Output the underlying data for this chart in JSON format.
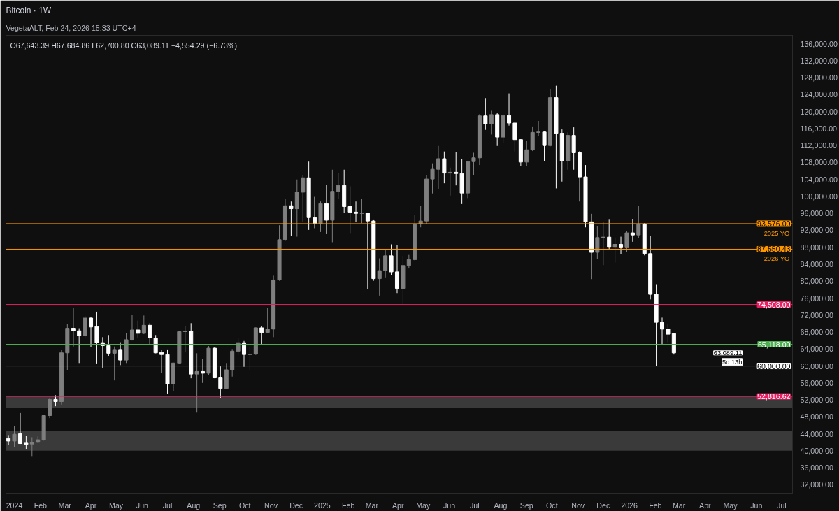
{
  "chart_data": {
    "type": "candlestick",
    "title": "Bitcoin · 1W",
    "subtitle": "VegetaALT, Feb 24, 2026 15:33 UTC+4",
    "annotations": [
      "O67,643.39 H67,684.86 L62,700.80 C63,089.11 −4,554.29 (−6.73%)",
      "63,089.11",
      "5d 13h",
      {
        "text": "2025 YO",
        "y": 93576
      },
      {
        "text": "2026 YO",
        "y": 87550.43
      }
    ],
    "x": [
      "2023-12-25",
      "2024-01-01",
      "2024-01-08",
      "2024-01-15",
      "2024-01-22",
      "2024-01-29",
      "2024-02-05",
      "2024-02-12",
      "2024-02-19",
      "2024-02-26",
      "2024-03-04",
      "2024-03-11",
      "2024-03-18",
      "2024-03-25",
      "2024-04-01",
      "2024-04-08",
      "2024-04-15",
      "2024-04-22",
      "2024-04-29",
      "2024-05-06",
      "2024-05-13",
      "2024-05-20",
      "2024-05-27",
      "2024-06-03",
      "2024-06-10",
      "2024-06-17",
      "2024-06-24",
      "2024-07-01",
      "2024-07-08",
      "2024-07-15",
      "2024-07-22",
      "2024-07-29",
      "2024-08-05",
      "2024-08-12",
      "2024-08-19",
      "2024-08-26",
      "2024-09-02",
      "2024-09-09",
      "2024-09-16",
      "2024-09-23",
      "2024-09-30",
      "2024-10-07",
      "2024-10-14",
      "2024-10-21",
      "2024-10-28",
      "2024-11-04",
      "2024-11-11",
      "2024-11-18",
      "2024-11-25",
      "2024-12-02",
      "2024-12-09",
      "2024-12-16",
      "2024-12-23",
      "2024-12-30",
      "2025-01-06",
      "2025-01-13",
      "2025-01-20",
      "2025-01-27",
      "2025-02-03",
      "2025-02-10",
      "2025-02-17",
      "2025-02-24",
      "2025-03-03",
      "2025-03-10",
      "2025-03-17",
      "2025-03-24",
      "2025-03-31",
      "2025-04-07",
      "2025-04-14",
      "2025-04-21",
      "2025-04-28",
      "2025-05-05",
      "2025-05-12",
      "2025-05-19",
      "2025-05-26",
      "2025-06-02",
      "2025-06-09",
      "2025-06-16",
      "2025-06-23",
      "2025-06-30",
      "2025-07-07",
      "2025-07-14",
      "2025-07-21",
      "2025-07-28",
      "2025-08-04",
      "2025-08-11",
      "2025-08-18",
      "2025-08-25",
      "2025-09-01",
      "2025-09-08",
      "2025-09-15",
      "2025-09-22",
      "2025-09-29",
      "2025-10-06",
      "2025-10-13",
      "2025-10-20",
      "2025-10-27",
      "2025-11-03",
      "2025-11-10",
      "2025-11-17",
      "2025-11-24",
      "2025-12-01",
      "2025-12-08",
      "2025-12-15",
      "2025-12-22",
      "2025-12-29",
      "2026-01-05",
      "2026-01-12",
      "2026-01-19",
      "2026-01-26",
      "2026-02-02",
      "2026-02-09",
      "2026-02-16",
      "2026-02-23"
    ],
    "ohlc": [
      [
        42900,
        43700,
        41300,
        42300
      ],
      [
        42300,
        45900,
        40800,
        43900
      ],
      [
        44000,
        48900,
        41600,
        41700
      ],
      [
        41800,
        43600,
        40300,
        41500
      ],
      [
        41600,
        43200,
        38600,
        42000
      ],
      [
        42000,
        43400,
        41800,
        42600
      ],
      [
        42600,
        48500,
        42400,
        48300
      ],
      [
        48300,
        52500,
        47700,
        52100
      ],
      [
        52100,
        53100,
        50500,
        51600
      ],
      [
        51600,
        63800,
        50900,
        63100
      ],
      [
        63100,
        69900,
        59000,
        68900
      ],
      [
        68900,
        73700,
        64600,
        68300
      ],
      [
        68300,
        68900,
        60700,
        67100
      ],
      [
        67100,
        71800,
        66500,
        71300
      ],
      [
        71300,
        71500,
        64400,
        69200
      ],
      [
        69300,
        72800,
        60600,
        65500
      ],
      [
        65500,
        66800,
        59600,
        64800
      ],
      [
        64800,
        67300,
        62400,
        63000
      ],
      [
        63000,
        64600,
        56600,
        63900
      ],
      [
        63900,
        65600,
        60200,
        61400
      ],
      [
        61400,
        67800,
        60700,
        66200
      ],
      [
        66200,
        72100,
        66000,
        68500
      ],
      [
        68500,
        70700,
        66600,
        67700
      ],
      [
        67700,
        71900,
        67500,
        69600
      ],
      [
        69600,
        70100,
        65000,
        66600
      ],
      [
        66600,
        67300,
        63000,
        63100
      ],
      [
        63200,
        63800,
        58400,
        62700
      ],
      [
        62700,
        63900,
        53500,
        55800
      ],
      [
        55800,
        60800,
        54100,
        60700
      ],
      [
        60700,
        68300,
        60600,
        68100
      ],
      [
        68100,
        69400,
        63200,
        68200
      ],
      [
        68200,
        70100,
        57100,
        58100
      ],
      [
        58100,
        63000,
        49000,
        58700
      ],
      [
        58700,
        61700,
        56000,
        58300
      ],
      [
        58300,
        64700,
        57900,
        64200
      ],
      [
        64200,
        64400,
        57100,
        57200
      ],
      [
        57200,
        59900,
        52500,
        54700
      ],
      [
        54700,
        60700,
        54600,
        59100
      ],
      [
        59100,
        64000,
        57500,
        63500
      ],
      [
        63500,
        66500,
        62600,
        65500
      ],
      [
        65500,
        65900,
        59800,
        62700
      ],
      [
        62700,
        64400,
        58900,
        62800
      ],
      [
        62800,
        69100,
        62600,
        69000
      ],
      [
        69000,
        69400,
        65100,
        67900
      ],
      [
        67900,
        73700,
        67800,
        68700
      ],
      [
        68700,
        81300,
        66800,
        80300
      ],
      [
        80300,
        93200,
        80100,
        89800
      ],
      [
        89800,
        99400,
        89500,
        97800
      ],
      [
        97800,
        98800,
        90600,
        97100
      ],
      [
        97100,
        104000,
        90500,
        101000
      ],
      [
        101000,
        105000,
        94000,
        104400
      ],
      [
        104400,
        108200,
        92100,
        95000
      ],
      [
        95000,
        99900,
        92500,
        93600
      ],
      [
        93600,
        98800,
        91600,
        98300
      ],
      [
        98300,
        102700,
        91100,
        94400
      ],
      [
        94400,
        106300,
        89200,
        101200
      ],
      [
        101200,
        105500,
        99400,
        102600
      ],
      [
        102600,
        106300,
        96100,
        97600
      ],
      [
        97600,
        102400,
        91200,
        96300
      ],
      [
        96300,
        98800,
        94000,
        96000
      ],
      [
        96000,
        99400,
        93700,
        96100
      ],
      [
        96100,
        96200,
        78200,
        94200
      ],
      [
        94200,
        94400,
        80100,
        80600
      ],
      [
        80600,
        85400,
        76600,
        82500
      ],
      [
        82500,
        87300,
        80900,
        86000
      ],
      [
        86000,
        88700,
        81500,
        82200
      ],
      [
        82200,
        88500,
        77200,
        78300
      ],
      [
        78300,
        86000,
        74500,
        83700
      ],
      [
        83700,
        86200,
        83000,
        85100
      ],
      [
        85100,
        95600,
        84900,
        93500
      ],
      [
        93500,
        97700,
        92700,
        94200
      ],
      [
        94200,
        105000,
        93500,
        104100
      ],
      [
        104100,
        107800,
        100700,
        106400
      ],
      [
        106400,
        111900,
        101800,
        108900
      ],
      [
        108900,
        110600,
        103100,
        105500
      ],
      [
        105500,
        106800,
        100200,
        105700
      ],
      [
        105700,
        110500,
        102600,
        105400
      ],
      [
        105400,
        108800,
        98200,
        100800
      ],
      [
        100800,
        108400,
        99600,
        108200
      ],
      [
        108200,
        110300,
        105000,
        109100
      ],
      [
        109100,
        119400,
        107400,
        119000
      ],
      [
        119000,
        123200,
        115700,
        117100
      ],
      [
        117100,
        120200,
        114600,
        119300
      ],
      [
        119300,
        119700,
        111900,
        114000
      ],
      [
        114000,
        119400,
        112500,
        119100
      ],
      [
        119100,
        124300,
        116700,
        117300
      ],
      [
        117300,
        117500,
        110600,
        113400
      ],
      [
        113400,
        113500,
        107200,
        108100
      ],
      [
        108100,
        113100,
        107200,
        111000
      ],
      [
        111000,
        116500,
        110700,
        115100
      ],
      [
        115100,
        117800,
        114200,
        115200
      ],
      [
        115200,
        115300,
        108400,
        112000
      ],
      [
        112000,
        125400,
        111800,
        123300
      ],
      [
        123300,
        126100,
        101900,
        114900
      ],
      [
        114900,
        115800,
        103500,
        108400
      ],
      [
        108400,
        115100,
        106300,
        114400
      ],
      [
        114400,
        116300,
        106300,
        110300
      ],
      [
        110300,
        110700,
        98800,
        104600
      ],
      [
        104600,
        107400,
        92700,
        94000
      ],
      [
        94000,
        95900,
        80500,
        86800
      ],
      [
        86800,
        92900,
        85200,
        90300
      ],
      [
        90300,
        94000,
        83800,
        90400
      ],
      [
        90400,
        94500,
        87600,
        88000
      ],
      [
        88000,
        90300,
        84400,
        88700
      ],
      [
        88700,
        90500,
        86400,
        87900
      ],
      [
        87900,
        91900,
        86900,
        91400
      ],
      [
        91400,
        94700,
        89300,
        90900
      ],
      [
        90900,
        97700,
        90100,
        93500
      ],
      [
        93500,
        93700,
        86100,
        86500
      ],
      [
        86500,
        90600,
        75700,
        76900
      ],
      [
        76900,
        79300,
        60000,
        70300
      ],
      [
        70300,
        71400,
        65100,
        68700
      ],
      [
        68700,
        70000,
        65600,
        67500
      ],
      [
        67643.39,
        67684.86,
        62700.8,
        63089.11
      ]
    ],
    "colors": [
      "#ffffff",
      "#7f7f7f",
      "#ffffff",
      "#ffffff",
      "#7f7f7f",
      "#7f7f7f",
      "#7f7f7f",
      "#7f7f7f",
      "#ffffff",
      "#7f7f7f",
      "#7f7f7f",
      "#ffffff",
      "#ffffff",
      "#7f7f7f",
      "#ffffff",
      "#ffffff",
      "#ffffff",
      "#ffffff",
      "#7f7f7f",
      "#ffffff",
      "#7f7f7f",
      "#7f7f7f",
      "#ffffff",
      "#7f7f7f",
      "#ffffff",
      "#ffffff",
      "#ffffff",
      "#ffffff",
      "#7f7f7f",
      "#7f7f7f",
      "#7f7f7f",
      "#ffffff",
      "#7f7f7f",
      "#ffffff",
      "#7f7f7f",
      "#ffffff",
      "#ffffff",
      "#7f7f7f",
      "#7f7f7f",
      "#7f7f7f",
      "#ffffff",
      "#7f7f7f",
      "#7f7f7f",
      "#ffffff",
      "#7f7f7f",
      "#7f7f7f",
      "#7f7f7f",
      "#7f7f7f",
      "#ffffff",
      "#7f7f7f",
      "#7f7f7f",
      "#ffffff",
      "#ffffff",
      "#7f7f7f",
      "#ffffff",
      "#7f7f7f",
      "#7f7f7f",
      "#ffffff",
      "#ffffff",
      "#ffffff",
      "#7f7f7f",
      "#ffffff",
      "#ffffff",
      "#7f7f7f",
      "#7f7f7f",
      "#ffffff",
      "#ffffff",
      "#7f7f7f",
      "#7f7f7f",
      "#7f7f7f",
      "#7f7f7f",
      "#7f7f7f",
      "#7f7f7f",
      "#7f7f7f",
      "#ffffff",
      "#7f7f7f",
      "#ffffff",
      "#ffffff",
      "#7f7f7f",
      "#7f7f7f",
      "#7f7f7f",
      "#ffffff",
      "#7f7f7f",
      "#ffffff",
      "#7f7f7f",
      "#ffffff",
      "#ffffff",
      "#ffffff",
      "#7f7f7f",
      "#7f7f7f",
      "#7f7f7f",
      "#ffffff",
      "#7f7f7f",
      "#ffffff",
      "#ffffff",
      "#7f7f7f",
      "#ffffff",
      "#ffffff",
      "#ffffff",
      "#ffffff",
      "#7f7f7f",
      "#7f7f7f",
      "#ffffff",
      "#7f7f7f",
      "#ffffff",
      "#7f7f7f",
      "#ffffff",
      "#7f7f7f",
      "#ffffff",
      "#ffffff",
      "#ffffff",
      "#ffffff",
      "#ffffff",
      "#ffffff"
    ],
    "xlim": [
      "2023-12-22",
      "2026-07-14"
    ],
    "xticks": [
      {
        "value": "2024-01-01",
        "label": "2024"
      },
      {
        "value": "2024-02-01",
        "label": "Feb"
      },
      {
        "value": "2024-03-01",
        "label": "Mar"
      },
      {
        "value": "2024-04-01",
        "label": "Apr"
      },
      {
        "value": "2024-05-01",
        "label": "May"
      },
      {
        "value": "2024-06-01",
        "label": "Jun"
      },
      {
        "value": "2024-07-01",
        "label": "Jul"
      },
      {
        "value": "2024-08-01",
        "label": "Aug"
      },
      {
        "value": "2024-09-01",
        "label": "Sep"
      },
      {
        "value": "2024-10-01",
        "label": "Oct"
      },
      {
        "value": "2024-11-01",
        "label": "Nov"
      },
      {
        "value": "2024-12-01",
        "label": "Dec"
      },
      {
        "value": "2025-01-01",
        "label": "2025"
      },
      {
        "value": "2025-02-01",
        "label": "Feb"
      },
      {
        "value": "2025-03-01",
        "label": "Mar"
      },
      {
        "value": "2025-04-01",
        "label": "Apr"
      },
      {
        "value": "2025-05-01",
        "label": "May"
      },
      {
        "value": "2025-06-01",
        "label": "Jun"
      },
      {
        "value": "2025-07-01",
        "label": "Jul"
      },
      {
        "value": "2025-08-01",
        "label": "Aug"
      },
      {
        "value": "2025-09-01",
        "label": "Sep"
      },
      {
        "value": "2025-10-01",
        "label": "Oct"
      },
      {
        "value": "2025-11-01",
        "label": "Nov"
      },
      {
        "value": "2025-12-01",
        "label": "Dec"
      },
      {
        "value": "2026-01-01",
        "label": "2026"
      },
      {
        "value": "2026-02-01",
        "label": "Feb"
      },
      {
        "value": "2026-03-01",
        "label": "Mar"
      },
      {
        "value": "2026-04-01",
        "label": "Apr"
      },
      {
        "value": "2026-05-01",
        "label": "May"
      },
      {
        "value": "2026-06-01",
        "label": "Jun"
      },
      {
        "value": "2026-07-01",
        "label": "Jul"
      }
    ],
    "ylim": [
      30000,
      138000
    ],
    "yticks": [
      {
        "value": 32000,
        "label": "32,000.00"
      },
      {
        "value": 36000,
        "label": "36,000.00"
      },
      {
        "value": 40000,
        "label": "40,000.00"
      },
      {
        "value": 44000,
        "label": "44,000.00"
      },
      {
        "value": 48000,
        "label": "48,000.00"
      },
      {
        "value": 52000,
        "label": "52,000.00"
      },
      {
        "value": 56000,
        "label": "56,000.00"
      },
      {
        "value": 60000,
        "label": "60,000.00"
      },
      {
        "value": 64000,
        "label": "64,000.00"
      },
      {
        "value": 68000,
        "label": "68,000.00"
      },
      {
        "value": 72000,
        "label": "72,000.00"
      },
      {
        "value": 76000,
        "label": "76,000.00"
      },
      {
        "value": 80000,
        "label": "80,000.00"
      },
      {
        "value": 84000,
        "label": "84,000.00"
      },
      {
        "value": 88000,
        "label": "88,000.00"
      },
      {
        "value": 92000,
        "label": "92,000.00"
      },
      {
        "value": 96000,
        "label": "96,000.00"
      },
      {
        "value": 100000,
        "label": "100,000.00"
      },
      {
        "value": 104000,
        "label": "104,000.00"
      },
      {
        "value": 108000,
        "label": "108,000.00"
      },
      {
        "value": 112000,
        "label": "112,000.00"
      },
      {
        "value": 116000,
        "label": "116,000.00"
      },
      {
        "value": 120000,
        "label": "120,000.00"
      },
      {
        "value": 124000,
        "label": "124,000.00"
      },
      {
        "value": 128000,
        "label": "128,000.00"
      },
      {
        "value": 132000,
        "label": "132,000.00"
      },
      {
        "value": 136000,
        "label": "136,000.00"
      }
    ],
    "ref_lines": [
      {
        "axis": "y",
        "value": 93576,
        "label": "93,576.00",
        "color": "#ff9800"
      },
      {
        "axis": "y",
        "value": 87550.43,
        "label": "87,550.43",
        "color": "#ff9800"
      },
      {
        "axis": "y",
        "value": 74508,
        "label": "74,508.00",
        "color": "#e91e63"
      },
      {
        "axis": "y",
        "value": 65118,
        "label": "65,118.00",
        "color": "#4caf50"
      },
      {
        "axis": "y",
        "value": 60000,
        "label": "60,000.00",
        "color": "#ffffff"
      },
      {
        "axis": "y",
        "value": 52816.62,
        "label": "52,816.62",
        "color": "#e91e63"
      }
    ],
    "bands": [
      {
        "axis": "y",
        "from": 50100,
        "to": 52816.62,
        "color": "#3a3a3a"
      },
      {
        "axis": "y",
        "from": 40000,
        "to": 44700,
        "color": "#3a3a3a"
      }
    ],
    "grid": false
  }
}
